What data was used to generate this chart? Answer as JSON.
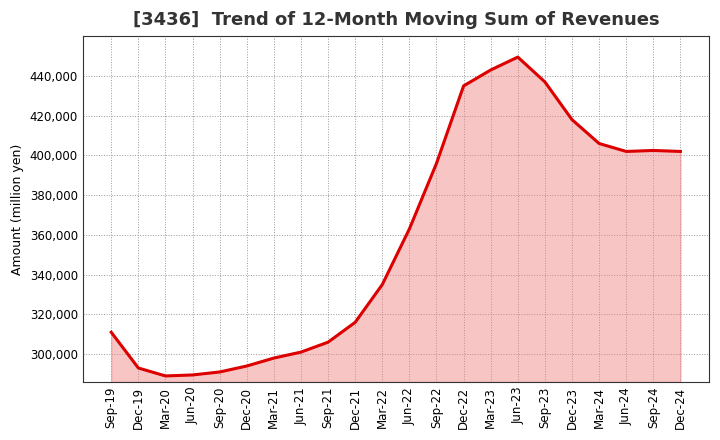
{
  "title": "[3436]  Trend of 12-Month Moving Sum of Revenues",
  "ylabel": "Amount (million yen)",
  "line_color": "#dd0000",
  "background_color": "#ffffff",
  "plot_bg_color": "#ffffff",
  "grid_color": "#999999",
  "x_labels": [
    "Sep-19",
    "Dec-19",
    "Mar-20",
    "Jun-20",
    "Sep-20",
    "Dec-20",
    "Mar-21",
    "Jun-21",
    "Sep-21",
    "Dec-21",
    "Mar-22",
    "Jun-22",
    "Sep-22",
    "Dec-22",
    "Mar-23",
    "Jun-23",
    "Sep-23",
    "Dec-23",
    "Mar-24",
    "Jun-24",
    "Sep-24",
    "Dec-24"
  ],
  "values": [
    311000,
    293000,
    289000,
    289500,
    291000,
    294000,
    298000,
    301000,
    306000,
    316000,
    335000,
    363000,
    396000,
    435000,
    443000,
    449500,
    437000,
    418000,
    406000,
    402000,
    402500,
    402000
  ],
  "ylim_min": 286000,
  "ylim_max": 460000,
  "yticks": [
    300000,
    320000,
    340000,
    360000,
    380000,
    400000,
    420000,
    440000
  ],
  "line_width": 2.2,
  "title_fontsize": 13,
  "ylabel_fontsize": 9,
  "tick_fontsize": 8.5,
  "fill_color": "#f08080",
  "fill_alpha": 0.45
}
